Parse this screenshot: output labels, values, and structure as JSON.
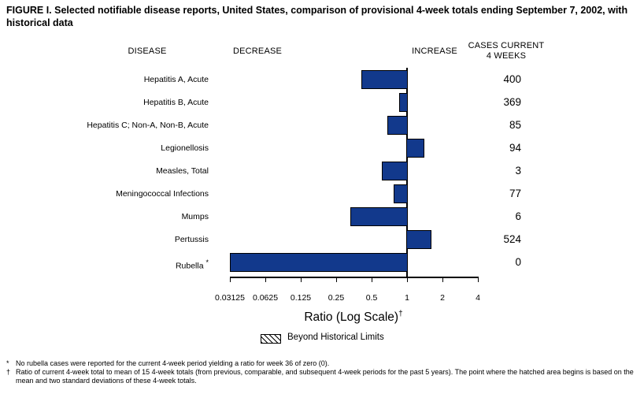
{
  "title": "FIGURE I. Selected notifiable disease reports, United States, comparison of provisional 4-week totals ending September 7, 2002, with historical data",
  "headers": {
    "disease": "DISEASE",
    "decrease": "DECREASE",
    "increase": "INCREASE",
    "cases_line1": "CASES CURRENT",
    "cases_line2": "4 WEEKS"
  },
  "chart_data": {
    "type": "bar",
    "orientation": "horizontal",
    "scale": "log2",
    "bar_color": "#12398c",
    "bar_outline": "#000000",
    "baseline_ratio": 1,
    "axis": {
      "label": "Ratio (Log Scale)",
      "label_superscript": "†",
      "ticks": [
        0.03125,
        0.0625,
        0.125,
        0.25,
        0.5,
        1,
        2,
        4
      ],
      "tick_labels": [
        "0.03125",
        "0.0625",
        "0.125",
        "0.25",
        "0.5",
        "1",
        "2",
        "4"
      ],
      "xlim": [
        0.03125,
        4
      ]
    },
    "series": [
      {
        "disease": "Hepatitis A, Acute",
        "ratio": 0.41,
        "cases": 400
      },
      {
        "disease": "Hepatitis B, Acute",
        "ratio": 0.86,
        "cases": 369
      },
      {
        "disease": "Hepatitis C; Non-A, Non-B, Acute",
        "ratio": 0.68,
        "cases": 85
      },
      {
        "disease": "Legionellosis",
        "ratio": 1.4,
        "cases": 94
      },
      {
        "disease": "Measles, Total",
        "ratio": 0.61,
        "cases": 3
      },
      {
        "disease": "Meningococcal Infections",
        "ratio": 0.77,
        "cases": 77
      },
      {
        "disease": "Mumps",
        "ratio": 0.33,
        "cases": 6
      },
      {
        "disease": "Pertussis",
        "ratio": 1.61,
        "cases": 524
      },
      {
        "disease": "Rubella",
        "footnote_marker": "*",
        "ratio": 0,
        "cases": 0
      }
    ],
    "legend": {
      "swatch": "hatched",
      "label": "Beyond Historical Limits"
    }
  },
  "footnotes": [
    {
      "marker": "*",
      "text": "No rubella cases were reported for the current 4-week period yielding a ratio for week 36 of zero (0)."
    },
    {
      "marker": "†",
      "text": "Ratio of current 4-week total to mean of 15 4-week totals (from previous, comparable, and subsequent 4-week periods for the past 5 years). The point where the hatched area begins is based on the mean and two standard deviations of these 4-week totals."
    }
  ]
}
